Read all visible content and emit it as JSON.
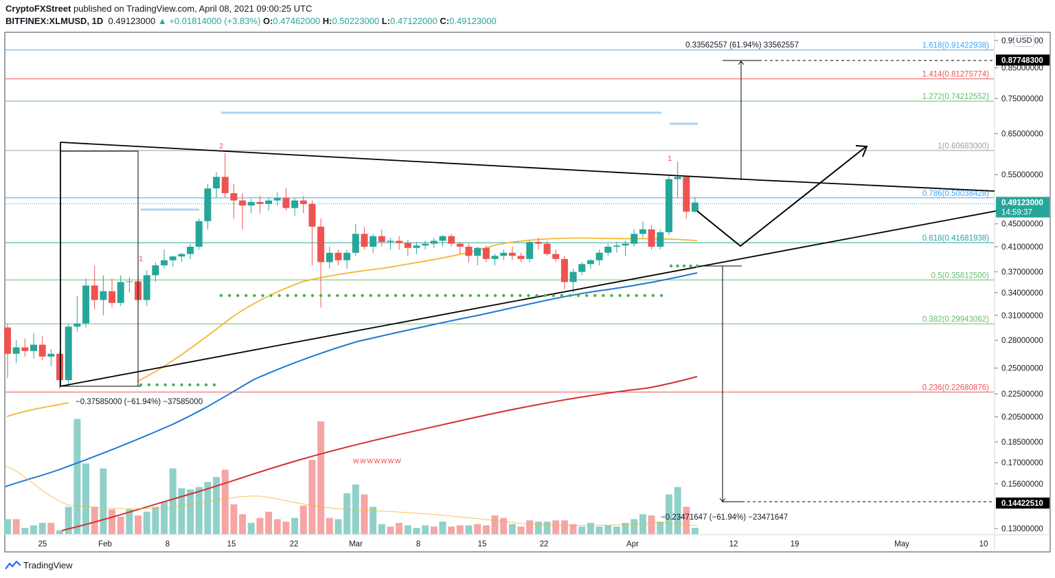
{
  "header": {
    "publisher": "CryptoFXStreet",
    "published_text": "published on TradingView.com, April 08, 2021 09:00:25 UTC",
    "symbol": "BITFINEX:XLMUSD, 1D",
    "last": "0.49123000",
    "change": "+0.01814000 (+3.83%)",
    "o_label": "O:",
    "o": "0.47462000",
    "h_label": "H:",
    "h": "0.50223000",
    "l_label": "L:",
    "l": "0.47122000",
    "c_label": "C:",
    "c": "0.49123000"
  },
  "footer": {
    "brand": "TradingView"
  },
  "currency_button": "USD",
  "colors": {
    "up": "#26a69a",
    "down": "#ef5350",
    "vol_up": "#8fd1c8",
    "vol_down": "#f5a5a5",
    "ma_fast": "#f2b632",
    "ma_mid": "#1f78d1",
    "ma_slow": "#d32f2f",
    "fib_blue": "#42a5f5",
    "fib_red": "#ef5350",
    "fib_green": "#66bb6a",
    "fib_gray": "#9e9e9e",
    "markers": "#4caf50"
  },
  "chart_data": {
    "type": "candlestick",
    "ylim": [
      0.13,
      0.95
    ],
    "scale": "log",
    "x_ticks": [
      "25",
      "Feb",
      "8",
      "15",
      "22",
      "Mar",
      "8",
      "15",
      "22",
      "Apr",
      "12",
      "19",
      "May",
      "10"
    ],
    "y_ticks": [
      "0.95000000",
      "0.85000000",
      "0.75000000",
      "0.65000000",
      "0.55000000",
      "0.45000000",
      "0.41000000",
      "0.37000000",
      "0.34000000",
      "0.31000000",
      "0.28000000",
      "0.25000000",
      "0.22500000",
      "0.20500000",
      "0.18500000",
      "0.17000000",
      "0.15600000",
      "0.13000000"
    ],
    "price_labels": [
      {
        "text": "0.87748300",
        "value": 0.877483,
        "style": "black"
      },
      {
        "text": "0.49123000",
        "value": 0.49123,
        "style": "green",
        "sub": "14:59:37"
      },
      {
        "text": "0.14422510",
        "value": 0.1442251,
        "style": "black"
      }
    ],
    "fib_levels": [
      {
        "label": "1.618(0.91422938)",
        "value": 0.91422938,
        "color": "blue"
      },
      {
        "label": "1.414(0.81275774)",
        "value": 0.81275774,
        "color": "red"
      },
      {
        "label": "1.272(0.74212552)",
        "value": 0.74212552,
        "color": "green"
      },
      {
        "label": "1(0.60683000)",
        "value": 0.60683,
        "color": "gray"
      },
      {
        "label": "0.786(0.50038428)",
        "value": 0.50038428,
        "color": "blue"
      },
      {
        "label": "0.618(0.41681938)",
        "value": 0.41681938,
        "color": "teal"
      },
      {
        "label": "0.5(0.35812500)",
        "value": 0.358125,
        "color": "green"
      },
      {
        "label": "0.382(0.29943062)",
        "value": 0.29943062,
        "color": "green"
      },
      {
        "label": "0.236(0.22680876)",
        "value": 0.22680876,
        "color": "red"
      }
    ],
    "annotations": {
      "measure_top": "0.33562557 (61.94%) 33562557",
      "measure_left": "−0.37585000 (−61.94%) −37585000",
      "measure_bottom": "−0.23471647 (−61.94%) −23471647",
      "wave_marks": "wwwwwww",
      "count_2": "2",
      "count_1a": "1",
      "count_1b": "1"
    },
    "candles": [
      [
        0.295,
        0.3,
        0.24,
        0.265
      ],
      [
        0.265,
        0.28,
        0.255,
        0.272
      ],
      [
        0.272,
        0.282,
        0.262,
        0.268
      ],
      [
        0.268,
        0.288,
        0.26,
        0.275
      ],
      [
        0.275,
        0.285,
        0.258,
        0.262
      ],
      [
        0.262,
        0.27,
        0.252,
        0.265
      ],
      [
        0.265,
        0.268,
        0.23,
        0.238
      ],
      [
        0.238,
        0.3,
        0.232,
        0.296
      ],
      [
        0.296,
        0.335,
        0.29,
        0.3
      ],
      [
        0.3,
        0.36,
        0.295,
        0.35
      ],
      [
        0.35,
        0.38,
        0.318,
        0.33
      ],
      [
        0.33,
        0.365,
        0.31,
        0.342
      ],
      [
        0.342,
        0.36,
        0.32,
        0.326
      ],
      [
        0.326,
        0.365,
        0.322,
        0.355
      ],
      [
        0.355,
        0.362,
        0.34,
        0.356
      ],
      [
        0.356,
        0.365,
        0.325,
        0.33
      ],
      [
        0.33,
        0.372,
        0.322,
        0.365
      ],
      [
        0.365,
        0.385,
        0.355,
        0.38
      ],
      [
        0.38,
        0.405,
        0.375,
        0.388
      ],
      [
        0.388,
        0.395,
        0.378,
        0.394
      ],
      [
        0.394,
        0.4,
        0.385,
        0.398
      ],
      [
        0.398,
        0.415,
        0.39,
        0.41
      ],
      [
        0.41,
        0.46,
        0.405,
        0.455
      ],
      [
        0.455,
        0.53,
        0.44,
        0.52
      ],
      [
        0.52,
        0.555,
        0.5,
        0.545
      ],
      [
        0.545,
        0.6,
        0.5,
        0.51
      ],
      [
        0.51,
        0.53,
        0.46,
        0.495
      ],
      [
        0.495,
        0.51,
        0.44,
        0.485
      ],
      [
        0.485,
        0.498,
        0.47,
        0.492
      ],
      [
        0.492,
        0.505,
        0.47,
        0.488
      ],
      [
        0.488,
        0.5,
        0.475,
        0.495
      ],
      [
        0.495,
        0.512,
        0.485,
        0.5
      ],
      [
        0.5,
        0.52,
        0.475,
        0.48
      ],
      [
        0.48,
        0.5,
        0.465,
        0.495
      ],
      [
        0.495,
        0.505,
        0.47,
        0.488
      ],
      [
        0.488,
        0.495,
        0.38,
        0.445
      ],
      [
        0.445,
        0.46,
        0.32,
        0.385
      ],
      [
        0.385,
        0.41,
        0.375,
        0.4
      ],
      [
        0.4,
        0.405,
        0.38,
        0.388
      ],
      [
        0.388,
        0.405,
        0.375,
        0.4
      ],
      [
        0.4,
        0.45,
        0.395,
        0.432
      ],
      [
        0.432,
        0.445,
        0.405,
        0.41
      ],
      [
        0.41,
        0.432,
        0.4,
        0.428
      ],
      [
        0.428,
        0.44,
        0.41,
        0.418
      ],
      [
        0.418,
        0.425,
        0.405,
        0.42
      ],
      [
        0.42,
        0.428,
        0.405,
        0.416
      ],
      [
        0.416,
        0.422,
        0.395,
        0.408
      ],
      [
        0.408,
        0.418,
        0.398,
        0.412
      ],
      [
        0.412,
        0.42,
        0.405,
        0.415
      ],
      [
        0.415,
        0.425,
        0.408,
        0.42
      ],
      [
        0.42,
        0.43,
        0.41,
        0.428
      ],
      [
        0.428,
        0.432,
        0.41,
        0.415
      ],
      [
        0.415,
        0.418,
        0.398,
        0.41
      ],
      [
        0.41,
        0.415,
        0.385,
        0.395
      ],
      [
        0.395,
        0.41,
        0.38,
        0.408
      ],
      [
        0.408,
        0.412,
        0.385,
        0.39
      ],
      [
        0.39,
        0.398,
        0.38,
        0.395
      ],
      [
        0.395,
        0.405,
        0.388,
        0.4
      ],
      [
        0.4,
        0.41,
        0.388,
        0.395
      ],
      [
        0.395,
        0.4,
        0.385,
        0.39
      ],
      [
        0.39,
        0.42,
        0.385,
        0.418
      ],
      [
        0.418,
        0.425,
        0.405,
        0.415
      ],
      [
        0.415,
        0.42,
        0.395,
        0.398
      ],
      [
        0.398,
        0.405,
        0.385,
        0.39
      ],
      [
        0.39,
        0.395,
        0.345,
        0.355
      ],
      [
        0.355,
        0.375,
        0.34,
        0.37
      ],
      [
        0.37,
        0.385,
        0.365,
        0.382
      ],
      [
        0.382,
        0.39,
        0.375,
        0.388
      ],
      [
        0.388,
        0.405,
        0.38,
        0.4
      ],
      [
        0.4,
        0.415,
        0.395,
        0.41
      ],
      [
        0.41,
        0.418,
        0.4,
        0.412
      ],
      [
        0.412,
        0.42,
        0.395,
        0.415
      ],
      [
        0.415,
        0.44,
        0.41,
        0.432
      ],
      [
        0.432,
        0.455,
        0.425,
        0.44
      ],
      [
        0.44,
        0.448,
        0.405,
        0.41
      ],
      [
        0.41,
        0.44,
        0.405,
        0.435
      ],
      [
        0.435,
        0.55,
        0.43,
        0.54
      ],
      [
        0.54,
        0.58,
        0.5,
        0.545
      ],
      [
        0.545,
        0.548,
        0.46,
        0.473
      ],
      [
        0.473,
        0.502,
        0.471,
        0.491
      ]
    ],
    "volumes": [
      [
        0.12,
        1
      ],
      [
        0.12,
        0
      ],
      [
        0.05,
        1
      ],
      [
        0.07,
        1
      ],
      [
        0.09,
        1
      ],
      [
        0.09,
        0
      ],
      [
        0.03,
        1
      ],
      [
        0.22,
        1
      ],
      [
        0.93,
        1
      ],
      [
        0.57,
        1
      ],
      [
        0.22,
        0
      ],
      [
        0.53,
        1
      ],
      [
        0.2,
        0
      ],
      [
        0.14,
        0
      ],
      [
        0.2,
        1
      ],
      [
        0.15,
        0
      ],
      [
        0.18,
        1
      ],
      [
        0.22,
        1
      ],
      [
        0.26,
        1
      ],
      [
        0.53,
        1
      ],
      [
        0.37,
        1
      ],
      [
        0.36,
        1
      ],
      [
        0.38,
        1
      ],
      [
        0.42,
        1
      ],
      [
        0.46,
        1
      ],
      [
        0.52,
        0
      ],
      [
        0.24,
        0
      ],
      [
        0.16,
        0
      ],
      [
        0.09,
        1
      ],
      [
        0.13,
        0
      ],
      [
        0.18,
        0
      ],
      [
        0.12,
        0
      ],
      [
        0.1,
        0
      ],
      [
        0.13,
        1
      ],
      [
        0.23,
        0
      ],
      [
        0.6,
        0
      ],
      [
        0.91,
        0
      ],
      [
        0.13,
        0
      ],
      [
        0.12,
        1
      ],
      [
        0.33,
        1
      ],
      [
        0.4,
        1
      ],
      [
        0.32,
        0
      ],
      [
        0.22,
        1
      ],
      [
        0.08,
        1
      ],
      [
        0.06,
        0
      ],
      [
        0.09,
        0
      ],
      [
        0.07,
        1
      ],
      [
        0.05,
        1
      ],
      [
        0.07,
        1
      ],
      [
        0.06,
        0
      ],
      [
        0.1,
        1
      ],
      [
        0.06,
        0
      ],
      [
        0.07,
        0
      ],
      [
        0.07,
        1
      ],
      [
        0.08,
        0
      ],
      [
        0.07,
        0
      ],
      [
        0.15,
        0
      ],
      [
        0.13,
        0
      ],
      [
        0.08,
        1
      ],
      [
        0.06,
        0
      ],
      [
        0.11,
        0
      ],
      [
        0.1,
        1
      ],
      [
        0.1,
        1
      ],
      [
        0.11,
        0
      ],
      [
        0.11,
        0
      ],
      [
        0.08,
        0
      ],
      [
        0.06,
        1
      ],
      [
        0.09,
        1
      ],
      [
        0.06,
        1
      ],
      [
        0.07,
        1
      ],
      [
        0.06,
        1
      ],
      [
        0.09,
        1
      ],
      [
        0.12,
        1
      ],
      [
        0.16,
        1
      ],
      [
        0.15,
        0
      ],
      [
        0.1,
        1
      ],
      [
        0.32,
        1
      ],
      [
        0.38,
        1
      ],
      [
        0.22,
        0
      ],
      [
        0.05,
        1
      ]
    ]
  }
}
